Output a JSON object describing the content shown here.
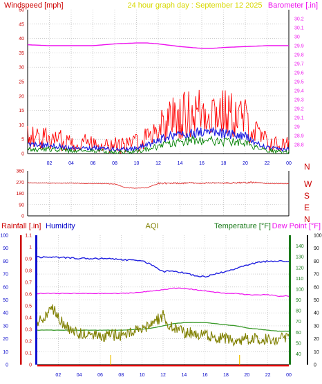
{
  "header": {
    "windspeed_label": "Windspeed [mph]",
    "title": "24 hour graph day : September 12 2025",
    "barometer_label": "Barometer [.in]"
  },
  "lower_header": {
    "rainfall_label": "Rainfall [.in]",
    "humidity_label": "Humidity",
    "aqi_label": "AQI",
    "temperature_label": "Temperature [°F]",
    "dewpoint_label": "Dew Point [°F]"
  },
  "colors": {
    "windspeed": "#ff0000",
    "windgust": "#ff0000",
    "wind_avg": "#2020e0",
    "wind_low": "#008000",
    "barometer": "#ee10ee",
    "winddir": "#e03030",
    "rainfall": "#ff0000",
    "humidity": "#2020e0",
    "aqi": "#808000",
    "temperature": "#3a9a2a",
    "dewpoint": "#ee10ee",
    "title": "#d8d800",
    "axis_red": "#cc0000",
    "axis_green": "#1a7a1a",
    "axis_blue": "#0000c8",
    "grid": "#b0b0b0"
  },
  "chart_data": [
    {
      "type": "area",
      "id": "wind",
      "title": "24 hour graph day : September 12 2025",
      "x_ticks": [
        "02",
        "04",
        "06",
        "08",
        "10",
        "12",
        "14",
        "16",
        "18",
        "20",
        "22",
        "00"
      ],
      "ylabel": "Windspeed [mph]",
      "ylim": [
        0,
        50
      ],
      "y_ticks": [
        0,
        5,
        10,
        15,
        20,
        25,
        30,
        35,
        40,
        45,
        50
      ],
      "grid": true,
      "series": [
        {
          "name": "Windspeed [mph]",
          "style": "gust",
          "x": [
            0,
            2,
            4,
            6,
            8,
            9,
            10,
            11,
            12,
            13,
            14,
            15,
            16,
            17,
            18,
            19,
            20,
            21,
            22,
            23,
            24
          ],
          "values": [
            6,
            5,
            4,
            4,
            3,
            3,
            4,
            6,
            9,
            12,
            13,
            14,
            15,
            15,
            14,
            13,
            12,
            7,
            4,
            3,
            3
          ]
        },
        {
          "name": "",
          "style": "avg",
          "x": [
            0,
            2,
            4,
            6,
            8,
            9,
            10,
            11,
            12,
            13,
            14,
            15,
            16,
            17,
            18,
            19,
            20,
            21,
            22,
            23,
            24
          ],
          "values": [
            3,
            3,
            2,
            2,
            1.5,
            1.5,
            2,
            3,
            4.5,
            6,
            6.5,
            7,
            7.5,
            7.5,
            7,
            6.5,
            6,
            3.5,
            2,
            1.5,
            1.5
          ]
        },
        {
          "name": "",
          "style": "low",
          "x": [
            0,
            2,
            4,
            6,
            8,
            9,
            10,
            11,
            12,
            13,
            14,
            15,
            16,
            17,
            18,
            19,
            20,
            21,
            22,
            23,
            24
          ],
          "values": [
            1.5,
            1.5,
            1,
            1,
            0.5,
            0.5,
            1,
            1.5,
            2.5,
            3.5,
            4,
            4.5,
            4.5,
            4.5,
            4,
            4,
            3.5,
            2,
            1,
            0.5,
            0.5
          ]
        }
      ]
    },
    {
      "type": "line",
      "id": "barometer",
      "ylabel": "Barometer [.in]",
      "ylim": [
        28.7,
        30.3
      ],
      "y_ticks": [
        28.8,
        28.9,
        29,
        29.1,
        29.2,
        29.3,
        29.4,
        29.5,
        29.6,
        29.7,
        29.8,
        29.9,
        30,
        30.1,
        30.2
      ],
      "series": [
        {
          "name": "Barometer [.in]",
          "x": [
            0,
            2,
            4,
            6,
            8,
            10,
            11,
            12,
            14,
            16,
            17,
            18,
            20,
            22,
            24
          ],
          "values": [
            29.91,
            29.9,
            29.9,
            29.9,
            29.92,
            29.93,
            29.93,
            29.92,
            29.89,
            29.87,
            29.87,
            29.88,
            29.89,
            29.9,
            29.9
          ]
        }
      ]
    },
    {
      "type": "line",
      "id": "winddir",
      "ylim": [
        0,
        360
      ],
      "y_ticks": [
        0,
        90,
        180,
        270,
        360
      ],
      "y_tick_labels": [
        "0",
        "90",
        "180",
        "270",
        "360"
      ],
      "compass": [
        "N",
        "W",
        "S",
        "E",
        "N"
      ],
      "series": [
        {
          "name": "",
          "x": [
            0,
            2,
            4,
            6,
            8,
            9,
            10,
            11,
            12,
            14,
            16,
            18,
            20,
            21,
            22,
            24
          ],
          "values": [
            265,
            262,
            262,
            258,
            256,
            225,
            222,
            225,
            260,
            262,
            262,
            262,
            265,
            268,
            258,
            258
          ]
        }
      ]
    },
    {
      "type": "line",
      "id": "rain_humidity",
      "x_ticks": [
        "02",
        "04",
        "06",
        "08",
        "10",
        "12",
        "14",
        "16",
        "18",
        "20",
        "22",
        "00"
      ],
      "ylim_humidity": [
        0,
        100
      ],
      "y_ticks_humidity": [
        0,
        10,
        20,
        30,
        40,
        50,
        60,
        70,
        80,
        90,
        100
      ],
      "ylim_rain": [
        0,
        1.1
      ],
      "y_ticks_rain": [
        0,
        0.1,
        0.2,
        0.3,
        0.4,
        0.5,
        0.6,
        0.7,
        0.8,
        0.9,
        1,
        1.1
      ],
      "ylim_temp": [
        30,
        150
      ],
      "y_ticks_temp": [
        40,
        50,
        60,
        70,
        80,
        90,
        100,
        110,
        120,
        130,
        140
      ],
      "ylim_dew": [
        0,
        100
      ],
      "y_ticks_dew": [
        0,
        10,
        20,
        30,
        40,
        50,
        60,
        70,
        80,
        90,
        100
      ],
      "series": [
        {
          "name": "Humidity",
          "axis": "humidity",
          "x": [
            0,
            2,
            4,
            6,
            7,
            8,
            9,
            10,
            11,
            12,
            13,
            14,
            15,
            16,
            17,
            18,
            19,
            20,
            21,
            22,
            23,
            24
          ],
          "values": [
            83,
            83,
            82,
            82,
            82,
            81,
            81,
            80,
            77,
            72,
            72,
            71,
            69,
            68,
            70,
            72,
            74,
            77,
            79,
            80,
            80,
            80
          ]
        },
        {
          "name": "Temperature [°F]",
          "axis": "temp",
          "x": [
            0,
            2,
            4,
            6,
            8,
            10,
            11,
            12,
            13,
            14,
            15,
            16,
            17,
            18,
            19,
            20,
            21,
            22,
            23,
            24
          ],
          "values": [
            62,
            62,
            62,
            62,
            62,
            63,
            64,
            66,
            68,
            69,
            69,
            69,
            68,
            67,
            66,
            64,
            63,
            62,
            61,
            61
          ]
        },
        {
          "name": "Dew Point [°F]",
          "axis": "dew",
          "x": [
            0,
            2,
            4,
            6,
            8,
            10,
            11,
            12,
            13,
            14,
            15,
            16,
            17,
            18,
            19,
            20,
            21,
            22,
            23,
            24
          ],
          "values": [
            55,
            55,
            55,
            55,
            55,
            56,
            57,
            58,
            59,
            59,
            58,
            57,
            56,
            55,
            55,
            54,
            54,
            54,
            53,
            53
          ]
        },
        {
          "name": "AQI",
          "axis": "humidity",
          "x": [
            0,
            1,
            1.5,
            2,
            2.5,
            3,
            4,
            6,
            8,
            10,
            11,
            11.5,
            12,
            12.5,
            13,
            14,
            16,
            18,
            19,
            20,
            22,
            24
          ],
          "values": [
            32,
            40,
            43,
            38,
            30,
            28,
            24,
            22,
            23,
            27,
            33,
            35,
            38,
            31,
            28,
            25,
            23,
            20,
            19,
            20,
            20,
            20
          ]
        },
        {
          "name": "Rainfall [.in]",
          "axis": "rain",
          "x": [
            0,
            24
          ],
          "values": [
            0,
            0
          ]
        }
      ],
      "markers_x": [
        7,
        19.3
      ]
    }
  ]
}
